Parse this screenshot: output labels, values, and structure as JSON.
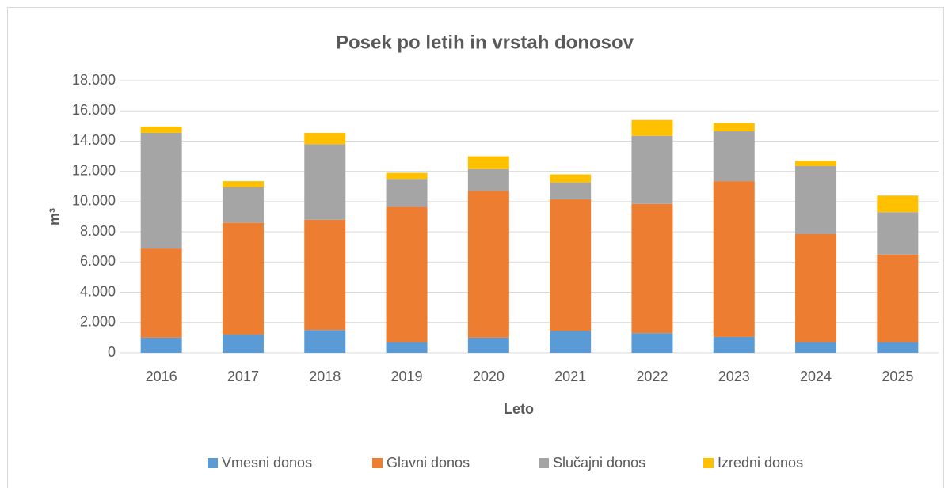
{
  "chart_data": {
    "type": "stacked_bar",
    "title": "Posek po letih in vrstah donosov",
    "x_label": "Leto",
    "y_label": "m³",
    "categories": [
      "2016",
      "2017",
      "2018",
      "2019",
      "2020",
      "2021",
      "2022",
      "2023",
      "2024",
      "2025"
    ],
    "series": [
      {
        "name": "Vmesni donos",
        "color": "#5b9bd5",
        "values": [
          1000,
          1200,
          1500,
          700,
          1000,
          1450,
          1300,
          1050,
          700,
          700
        ]
      },
      {
        "name": "Glavni donos",
        "color": "#ed7d31",
        "values": [
          5900,
          7400,
          7300,
          8950,
          9700,
          8700,
          8550,
          10300,
          7150,
          5800
        ]
      },
      {
        "name": "Slučajni donos",
        "color": "#a5a5a5",
        "values": [
          7650,
          2350,
          5000,
          1850,
          1450,
          1100,
          4500,
          3300,
          4500,
          2800
        ]
      },
      {
        "name": "Izredni donos",
        "color": "#ffc000",
        "values": [
          420,
          400,
          750,
          400,
          850,
          550,
          1050,
          550,
          350,
          1100
        ]
      }
    ],
    "ylim": [
      0,
      18000
    ],
    "yticks": [
      0,
      {
        "value": 2000,
        "label": "2.000"
      },
      {
        "value": 4000,
        "label": "4.000"
      },
      {
        "value": 6000,
        "label": "6.000"
      },
      {
        "value": 8000,
        "label": "8.000"
      },
      {
        "value": 10000,
        "label": "10.000"
      },
      {
        "value": 12000,
        "label": "12.000"
      },
      {
        "value": 14000,
        "label": "14.000"
      },
      {
        "value": 16000,
        "label": "16.000"
      },
      {
        "value": 18000,
        "label": "18.000"
      }
    ],
    "grid": true,
    "legend": "bottom"
  }
}
